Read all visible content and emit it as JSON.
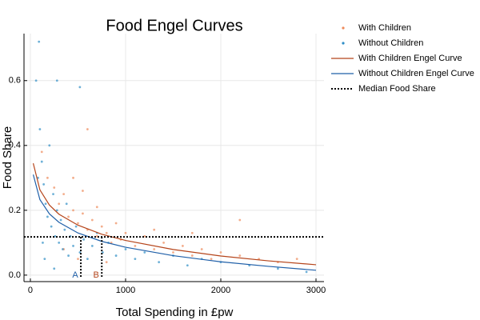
{
  "chart_data": {
    "type": "scatter",
    "title": "Food Engel Curves",
    "x_label": "Total Spending in £pw",
    "y_label": "Food Share",
    "xlim": [
      -67,
      3084
    ],
    "ylim": [
      -0.02,
      0.745
    ],
    "xticks": [
      0,
      1000,
      2000,
      3000
    ],
    "yticks": [
      {
        "value": 0,
        "label": "0.0"
      },
      {
        "value": 0.2,
        "label": "0.2"
      },
      {
        "value": 0.4,
        "label": "0.4"
      },
      {
        "value": 0.6,
        "label": "0.6"
      }
    ],
    "grid": true,
    "legend": "outer-right",
    "series": [
      {
        "name": "With Children",
        "type": "scatter",
        "color": "#ee8a5a",
        "x": [
          120,
          180,
          250,
          300,
          350,
          400,
          450,
          500,
          550,
          600,
          650,
          700,
          750,
          800,
          850,
          900,
          950,
          1000,
          1100,
          1200,
          1300,
          1400,
          1500,
          1600,
          1700,
          1800,
          1900,
          2000,
          2200,
          2400,
          2600,
          2800,
          450,
          550,
          700,
          600,
          1300,
          1700,
          2200,
          350,
          500,
          800
        ],
        "values": [
          0.38,
          0.3,
          0.27,
          0.22,
          0.25,
          0.18,
          0.2,
          0.16,
          0.19,
          0.14,
          0.17,
          0.12,
          0.15,
          0.13,
          0.1,
          0.16,
          0.11,
          0.13,
          0.09,
          0.12,
          0.08,
          0.1,
          0.07,
          0.09,
          0.06,
          0.08,
          0.05,
          0.07,
          0.06,
          0.05,
          0.04,
          0.05,
          0.3,
          0.26,
          0.21,
          0.45,
          0.14,
          0.13,
          0.17,
          0.08,
          0.05,
          0.04
        ]
      },
      {
        "name": "Without Children",
        "type": "scatter",
        "color": "#2f8ec6",
        "x": [
          60,
          90,
          100,
          120,
          140,
          160,
          180,
          200,
          220,
          240,
          260,
          280,
          300,
          320,
          340,
          360,
          380,
          400,
          420,
          450,
          480,
          520,
          560,
          600,
          650,
          700,
          760,
          820,
          900,
          1000,
          1100,
          1200,
          1350,
          1500,
          1650,
          1800,
          2000,
          2300,
          2600,
          2900,
          150,
          250,
          280,
          520,
          80,
          130
        ],
        "values": [
          0.6,
          0.72,
          0.45,
          0.35,
          0.28,
          0.22,
          0.18,
          0.4,
          0.15,
          0.25,
          0.12,
          0.2,
          0.1,
          0.17,
          0.08,
          0.14,
          0.22,
          0.06,
          0.12,
          0.09,
          0.15,
          0.07,
          0.11,
          0.05,
          0.09,
          0.13,
          0.07,
          0.1,
          0.06,
          0.08,
          0.05,
          0.07,
          0.04,
          0.06,
          0.03,
          0.05,
          0.04,
          0.03,
          0.02,
          0.01,
          0.05,
          0.02,
          0.6,
          0.58,
          0.3,
          0.1
        ]
      },
      {
        "name": "With Children Engel Curve",
        "type": "line",
        "color": "#b5441a",
        "x": [
          30,
          100,
          200,
          300,
          500,
          750,
          1000,
          1500,
          2000,
          2500,
          3000
        ],
        "values": [
          0.345,
          0.263,
          0.216,
          0.188,
          0.154,
          0.126,
          0.107,
          0.079,
          0.059,
          0.044,
          0.032
        ]
      },
      {
        "name": "Without Children Engel Curve",
        "type": "line",
        "color": "#1f5fa8",
        "x": [
          30,
          100,
          200,
          300,
          500,
          750,
          1000,
          1500,
          2000,
          2500,
          3000
        ],
        "values": [
          0.31,
          0.233,
          0.189,
          0.163,
          0.13,
          0.104,
          0.086,
          0.06,
          0.041,
          0.027,
          0.015
        ]
      },
      {
        "name": "Median Food Share",
        "type": "median",
        "color": "#000000",
        "values": [
          0.118
        ]
      }
    ],
    "annotations": [
      {
        "text": "A",
        "x": 530,
        "color": "#1f5fa8"
      },
      {
        "text": "B",
        "x": 750,
        "color": "#b5441a"
      }
    ]
  }
}
